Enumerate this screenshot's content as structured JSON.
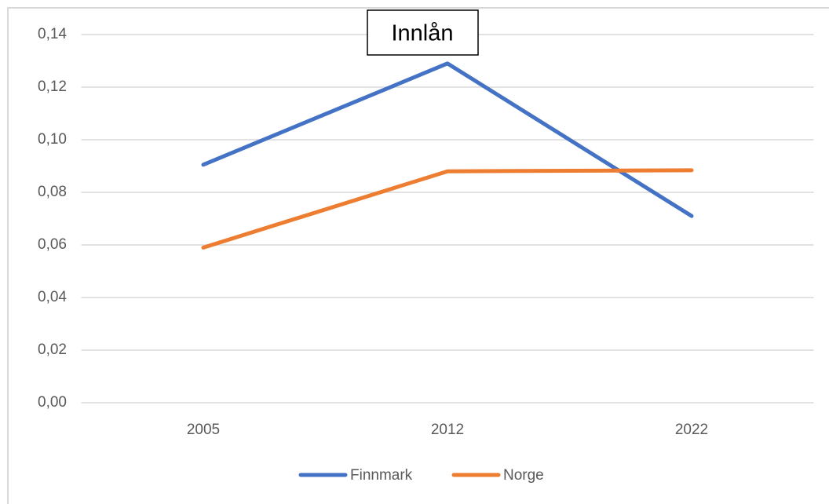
{
  "chart_data": {
    "type": "line",
    "title": "Innlån",
    "categories": [
      "2005",
      "2012",
      "2022"
    ],
    "series": [
      {
        "name": "Finnmark",
        "color": "#4472c4",
        "values": [
          0.0905,
          0.129,
          0.071
        ]
      },
      {
        "name": "Norge",
        "color": "#ed7d31",
        "values": [
          0.059,
          0.088,
          0.0884
        ]
      }
    ],
    "ylim": [
      0,
      0.14
    ],
    "yticks": [
      {
        "value": 0,
        "label": "0,00"
      },
      {
        "value": 0.02,
        "label": "0,02"
      },
      {
        "value": 0.04,
        "label": "0,04"
      },
      {
        "value": 0.06,
        "label": "0,06"
      },
      {
        "value": 0.08,
        "label": "0,08"
      },
      {
        "value": 0.1,
        "label": "0,10"
      },
      {
        "value": 0.12,
        "label": "0,12"
      },
      {
        "value": 0.14,
        "label": "0,14"
      }
    ],
    "grid": true,
    "legend": "bottom"
  }
}
